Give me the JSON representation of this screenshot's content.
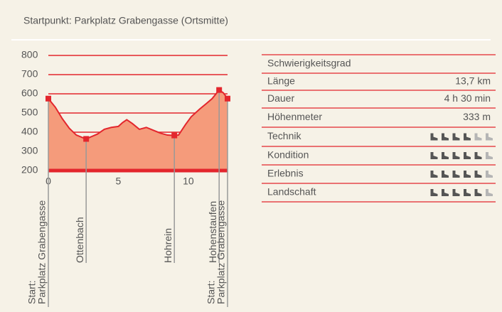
{
  "header": {
    "title": "Startpunkt: Parkplatz Grabengasse (Ortsmitte)"
  },
  "chart_data": {
    "type": "area",
    "x": [
      0,
      0.5,
      1,
      1.5,
      2,
      2.5,
      2.7,
      3.5,
      4,
      4.5,
      5,
      5.3,
      5.6,
      6,
      6.5,
      7,
      7.5,
      8,
      8.5,
      9,
      9.3,
      9.8,
      10.2,
      10.8,
      11.3,
      11.7,
      12.2,
      12.5,
      12.8
    ],
    "series": [
      {
        "color": "#e3262d",
        "values": [
          575,
          530,
          470,
          420,
          385,
          370,
          365,
          390,
          415,
          425,
          430,
          450,
          465,
          445,
          415,
          425,
          410,
          395,
          385,
          383,
          385,
          440,
          480,
          520,
          550,
          575,
          620,
          605,
          575
        ]
      }
    ],
    "xlim": [
      0,
      12.8
    ],
    "xticks": [
      0,
      5,
      10
    ],
    "ylim": [
      200,
      800
    ],
    "yticks": [
      200,
      300,
      400,
      500,
      600,
      700,
      800
    ],
    "grid": true,
    "waypoints": [
      {
        "km": 0,
        "elev": 575,
        "label": [
          "Start:",
          "Parkplatz Grabengasse"
        ]
      },
      {
        "km": 2.7,
        "elev": 365,
        "label": [
          "Ottenbach"
        ]
      },
      {
        "km": 9,
        "elev": 383,
        "label": [
          "Hohrein"
        ]
      },
      {
        "km": 12.2,
        "elev": 620,
        "label": [
          "Hohenstaufen"
        ]
      },
      {
        "km": 12.8,
        "elev": 575,
        "label": [
          "Start:",
          "Parkplatz Grabengasse"
        ]
      }
    ]
  },
  "table": {
    "heading": "Schwierigkeitsgrad",
    "rows": [
      [
        "Länge",
        "13,7 km"
      ],
      [
        "Dauer",
        "4 h 30 min"
      ],
      [
        "Höhenmeter",
        "333 m"
      ]
    ],
    "ratings": [
      {
        "name": "Technik",
        "value": 4,
        "max": 6
      },
      {
        "name": "Kondition",
        "value": 5,
        "max": 6
      },
      {
        "name": "Erlebnis",
        "value": 5,
        "max": 6
      },
      {
        "name": "Landschaft",
        "value": 5,
        "max": 6
      }
    ]
  }
}
